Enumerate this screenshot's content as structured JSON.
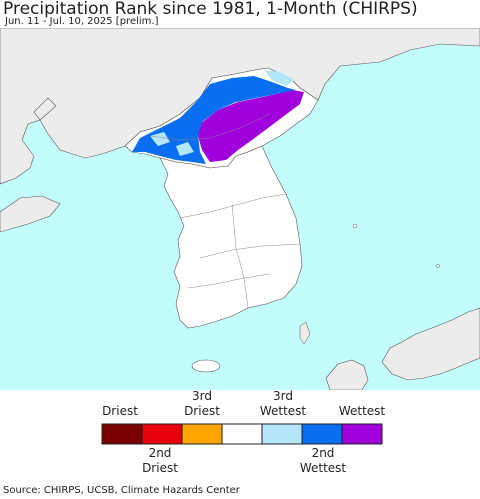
{
  "title": "Precipitation Rank since 1981, 1-Month (CHIRPS)",
  "subtitle": "Jun. 11 - Jul. 10, 2025 [prelim.]",
  "source": "Source: CHIRPS, UCSB, Climate Hazards Center",
  "colors": {
    "ocean": "#c3fcfc",
    "land_other": "#ececec",
    "land_normal": "#ffffff",
    "border": "#555555"
  },
  "legend": {
    "top_labels": [
      "Driest",
      "3rd\nDriest",
      "3rd\nWettest",
      "Wettest"
    ],
    "bottom_labels": [
      "2nd\nDriest",
      "2nd\nWettest"
    ],
    "swatches": [
      {
        "name": "driest",
        "color": "#7a0000"
      },
      {
        "name": "2nd-driest",
        "color": "#e8000b"
      },
      {
        "name": "3rd-driest",
        "color": "#ffa500"
      },
      {
        "name": "normal",
        "color": "#ffffff"
      },
      {
        "name": "3rd-wettest",
        "color": "#b4e6fa"
      },
      {
        "name": "2nd-wettest",
        "color": "#0a6ef0"
      },
      {
        "name": "wettest",
        "color": "#a000dc"
      }
    ]
  }
}
